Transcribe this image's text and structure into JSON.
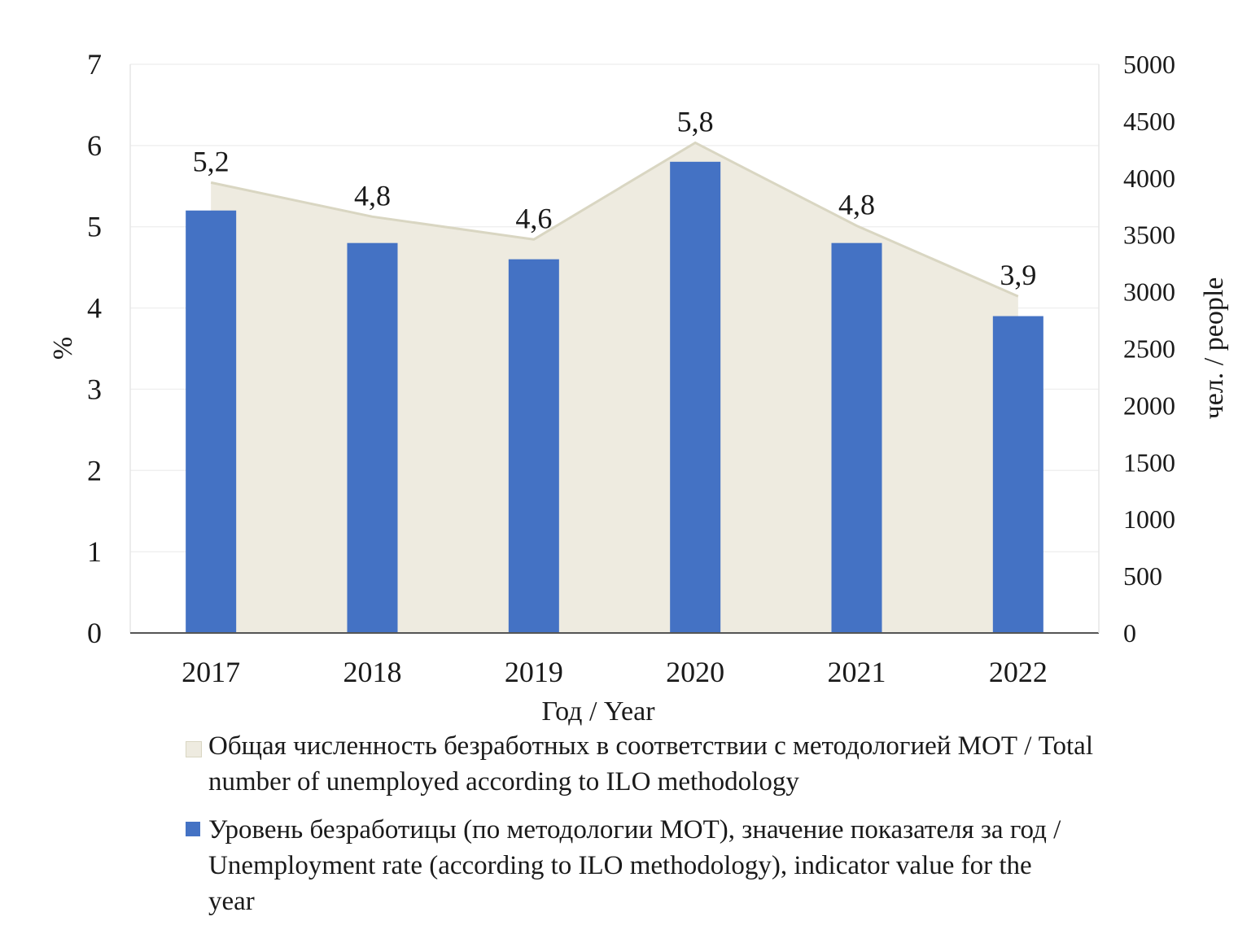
{
  "chart_data": {
    "type": "bar",
    "categories": [
      "2017",
      "2018",
      "2019",
      "2020",
      "2021",
      "2022"
    ],
    "xlabel": "Год / Year",
    "ylabel": "%",
    "y2label": "чел. / people",
    "ylim": [
      0,
      7
    ],
    "y_ticks": [
      "0",
      "1",
      "2",
      "3",
      "4",
      "5",
      "6",
      "7"
    ],
    "y2lim": [
      0,
      5000
    ],
    "y2_ticks": [
      "0",
      "500",
      "1000",
      "1500",
      "2000",
      "2500",
      "3000",
      "3500",
      "4000",
      "4500",
      "5000"
    ],
    "grid": true,
    "legend_position": "bottom",
    "series": [
      {
        "name": "Общая численность безработных в соответствии с методологией МОТ / Total number of unemployed according to ILO methodology",
        "type": "area",
        "axis": "right",
        "color": "#EEEBE0",
        "edge_color": "#D9D6C2",
        "values": [
          3960,
          3660,
          3460,
          4310,
          3580,
          2960
        ]
      },
      {
        "name": "Уровень безработицы (по методологии МОТ), значение показателя за год / Unemployment rate (according to ILO methodology), indicator value for the year",
        "type": "bar",
        "axis": "left",
        "color": "#4472C4",
        "values": [
          5.2,
          4.8,
          4.6,
          5.8,
          4.8,
          3.9
        ],
        "labels": [
          "5,2",
          "4,8",
          "4,6",
          "5,8",
          "4,8",
          "3,9"
        ]
      }
    ]
  },
  "legend": {
    "area_text": "Общая численность безработных в соответствии с методологией МОТ / Total number of unemployed according to ILO methodology",
    "bar_text": "Уровень безработицы (по методологии МОТ), значение показателя за год / Unemployment rate (according to ILO methodology), indicator value for the year"
  }
}
